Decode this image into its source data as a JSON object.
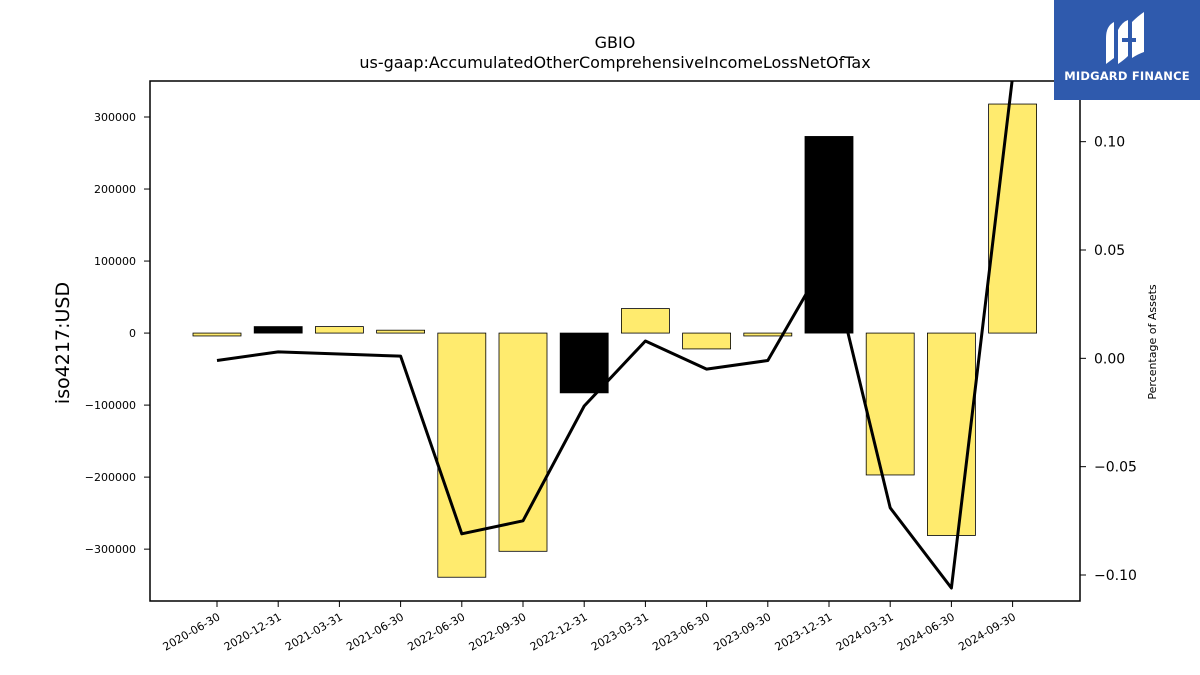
{
  "brand": {
    "name": "MIDGARD FINANCE",
    "bg_color": "#2f5aad"
  },
  "chart_data": {
    "type": "bar",
    "title": "GBIO",
    "subtitle": "us-gaap:AccumulatedOtherComprehensiveIncomeLossNetOfTax",
    "ylabel": "iso4217:USD",
    "y2label": "Percentage of Assets",
    "categories": [
      "2020-06-30",
      "2020-12-31",
      "2021-03-31",
      "2021-06-30",
      "2022-06-30",
      "2022-09-30",
      "2022-12-31",
      "2023-03-31",
      "2023-06-30",
      "2023-09-30",
      "2023-12-31",
      "2024-03-31",
      "2024-06-30",
      "2024-09-30"
    ],
    "bars": {
      "name": "iso4217:USD",
      "values": [
        -4000,
        9000,
        9000,
        4000,
        -339000,
        -303000,
        -83000,
        34000,
        -22000,
        -4000,
        273000,
        -197000,
        -281000,
        318000
      ],
      "colors": [
        "#ffeb6e",
        "#000000",
        "#ffeb6e",
        "#ffeb6e",
        "#ffeb6e",
        "#ffeb6e",
        "#000000",
        "#ffeb6e",
        "#ffeb6e",
        "#ffeb6e",
        "#000000",
        "#ffeb6e",
        "#ffeb6e",
        "#ffeb6e"
      ]
    },
    "line": {
      "name": "Percentage of Assets",
      "values": [
        -0.001,
        0.003,
        0.002,
        0.001,
        -0.081,
        -0.075,
        -0.022,
        0.008,
        -0.005,
        -0.001,
        0.048,
        -0.069,
        -0.106,
        0.13
      ],
      "color": "#000000"
    },
    "ylim": [
      -372000,
      350000
    ],
    "y_ticks": [
      -300000,
      -200000,
      -100000,
      0,
      100000,
      200000,
      300000
    ],
    "y_tick_labels": [
      "−300000",
      "−200000",
      "−100000",
      "0",
      "100000",
      "200000",
      "300000"
    ],
    "y2lim": [
      -0.112,
      0.128
    ],
    "y2_ticks": [
      -0.1,
      -0.05,
      0.0,
      0.05,
      0.1
    ],
    "y2_tick_labels": [
      "−0.10",
      "−0.05",
      "0.00",
      "0.05",
      "0.10"
    ],
    "grid": false,
    "colors": {
      "accent": "#ffeb6e",
      "negative_highlight": "#000000"
    }
  }
}
